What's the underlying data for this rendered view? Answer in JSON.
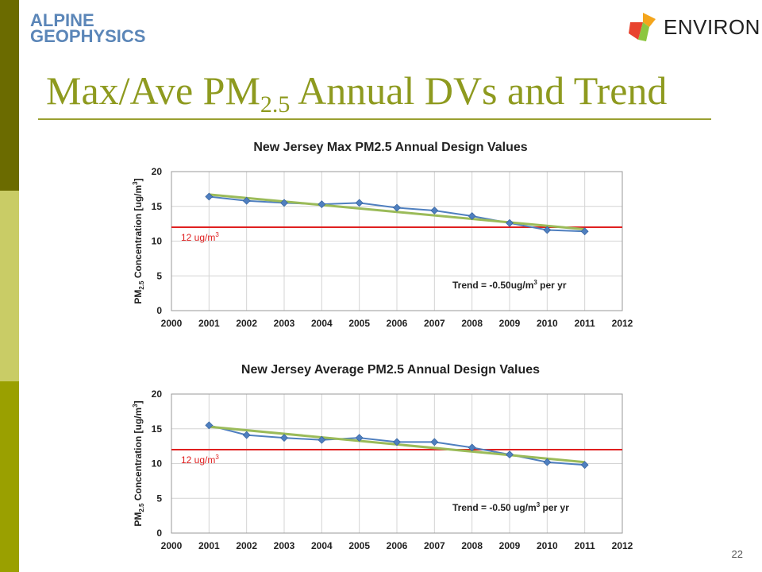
{
  "header": {
    "logo_left_line1": "ALPINE",
    "logo_left_line2": "GEOPHYSICS",
    "logo_right": "ENVIRON",
    "title_prefix": "Max/Ave PM",
    "title_sub": "2.5",
    "title_suffix": " Annual DVs and Trend"
  },
  "footer": {
    "page_number": "22"
  },
  "colors": {
    "data_line": "#4f7fbf",
    "trend_line": "#9bbb59",
    "threshold_line": "#e02020",
    "title": "#8e9a1f"
  },
  "chart_data": [
    {
      "type": "line",
      "title": "New Jersey Max PM2.5 Annual Design Values",
      "ylabel_main": "PM",
      "ylabel_sub": "2.5",
      "ylabel_rest": " Concentration [ug/m",
      "ylabel_sup": "3",
      "ylabel_end": "]",
      "xlim": [
        2000,
        2012
      ],
      "ylim": [
        0,
        20
      ],
      "xticks": [
        "2000",
        "2001",
        "2002",
        "2003",
        "2004",
        "2005",
        "2006",
        "2007",
        "2008",
        "2009",
        "2010",
        "2011",
        "2012"
      ],
      "yticks": [
        "0",
        "5",
        "10",
        "15",
        "20"
      ],
      "series": [
        {
          "x": [
            2001,
            2002,
            2003,
            2004,
            2005,
            2006,
            2007,
            2008,
            2009,
            2010,
            2011
          ],
          "values": [
            16.4,
            15.8,
            15.5,
            15.3,
            15.5,
            14.8,
            14.4,
            13.6,
            12.6,
            11.6,
            11.4
          ]
        }
      ],
      "trend": {
        "x": [
          2001,
          2011
        ],
        "values": [
          16.7,
          11.7
        ]
      },
      "threshold": {
        "value": 12,
        "label": "12 ug/m",
        "label_sup": "3"
      },
      "annotation": {
        "prefix": "Trend = ",
        "value": "-0.50",
        "unit": "ug/m",
        "unit_sup": "3",
        "suffix": " per yr"
      }
    },
    {
      "type": "line",
      "title": "New Jersey Average PM2.5 Annual Design Values",
      "ylabel_main": "PM",
      "ylabel_sub": "2.5",
      "ylabel_rest": " Concentration [ug/m",
      "ylabel_sup": "3",
      "ylabel_end": "]",
      "xlim": [
        2000,
        2012
      ],
      "ylim": [
        0,
        20
      ],
      "xticks": [
        "2000",
        "2001",
        "2002",
        "2003",
        "2004",
        "2005",
        "2006",
        "2007",
        "2008",
        "2009",
        "2010",
        "2011",
        "2012"
      ],
      "yticks": [
        "0",
        "5",
        "10",
        "15",
        "20"
      ],
      "series": [
        {
          "x": [
            2001,
            2002,
            2003,
            2004,
            2005,
            2006,
            2007,
            2008,
            2009,
            2010,
            2011
          ],
          "values": [
            15.5,
            14.1,
            13.7,
            13.4,
            13.7,
            13.1,
            13.1,
            12.3,
            11.3,
            10.2,
            9.8
          ]
        }
      ],
      "trend": {
        "x": [
          2001,
          2011
        ],
        "values": [
          15.3,
          10.2
        ]
      },
      "threshold": {
        "value": 12,
        "label": "12 ug/m",
        "label_sup": "3"
      },
      "annotation": {
        "prefix": "Trend = ",
        "value": "-0.50",
        "unit": " ug/m",
        "unit_sup": "3",
        "suffix": " per yr"
      }
    }
  ]
}
